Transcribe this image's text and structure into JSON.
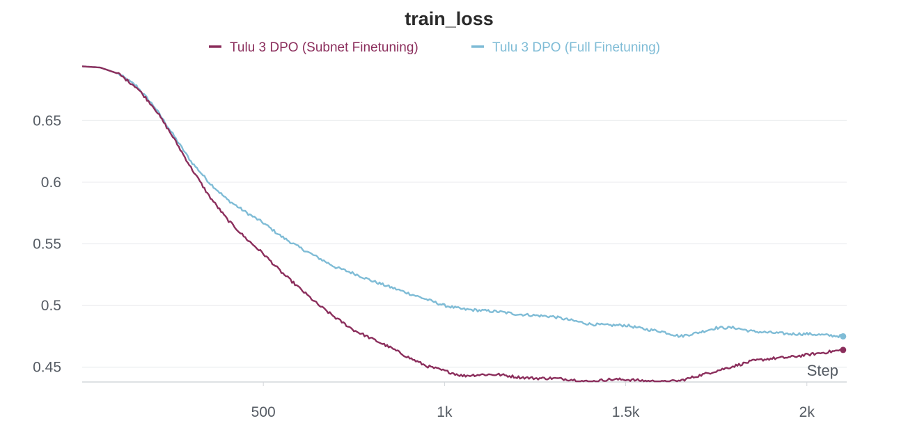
{
  "chart_data": {
    "type": "line",
    "title": "train_loss",
    "xlabel": "Step",
    "ylabel": "",
    "xlim": [
      0,
      2110
    ],
    "ylim": [
      0.438,
      0.697
    ],
    "xticks": [
      {
        "value": 500,
        "label": "500"
      },
      {
        "value": 1000,
        "label": "1k"
      },
      {
        "value": 1500,
        "label": "1.5k"
      },
      {
        "value": 2000,
        "label": "2k"
      }
    ],
    "yticks": [
      {
        "value": 0.45,
        "label": "0.45"
      },
      {
        "value": 0.5,
        "label": "0.5"
      },
      {
        "value": 0.55,
        "label": "0.55"
      },
      {
        "value": 0.6,
        "label": "0.6"
      },
      {
        "value": 0.65,
        "label": "0.65"
      }
    ],
    "grid": true,
    "legend_position": "top-center",
    "series": [
      {
        "name": "Tulu 3 DPO (Subnet Finetuning)",
        "color": "#8b2e5c",
        "x": [
          0,
          50,
          100,
          150,
          200,
          250,
          300,
          350,
          400,
          450,
          500,
          550,
          600,
          650,
          700,
          750,
          800,
          850,
          900,
          950,
          1000,
          1050,
          1100,
          1150,
          1200,
          1250,
          1300,
          1350,
          1400,
          1450,
          1500,
          1550,
          1600,
          1650,
          1700,
          1750,
          1800,
          1850,
          1900,
          1950,
          2000,
          2050,
          2100
        ],
        "y": [
          0.694,
          0.693,
          0.688,
          0.677,
          0.66,
          0.637,
          0.612,
          0.589,
          0.57,
          0.555,
          0.542,
          0.527,
          0.514,
          0.501,
          0.49,
          0.48,
          0.473,
          0.466,
          0.458,
          0.451,
          0.447,
          0.443,
          0.444,
          0.444,
          0.442,
          0.441,
          0.441,
          0.44,
          0.438,
          0.44,
          0.44,
          0.439,
          0.438,
          0.439,
          0.443,
          0.447,
          0.451,
          0.455,
          0.457,
          0.458,
          0.46,
          0.462,
          0.464
        ]
      },
      {
        "name": "Tulu 3 DPO (Full Finetuning)",
        "color": "#7fbcd6",
        "x": [
          0,
          50,
          100,
          150,
          200,
          250,
          300,
          350,
          400,
          450,
          500,
          550,
          600,
          650,
          700,
          750,
          800,
          850,
          900,
          950,
          1000,
          1050,
          1100,
          1150,
          1200,
          1250,
          1300,
          1350,
          1400,
          1450,
          1500,
          1550,
          1600,
          1650,
          1700,
          1750,
          1800,
          1850,
          1900,
          1950,
          2000,
          2050,
          2100
        ],
        "y": [
          0.694,
          0.693,
          0.688,
          0.678,
          0.661,
          0.639,
          0.617,
          0.6,
          0.586,
          0.576,
          0.567,
          0.556,
          0.547,
          0.539,
          0.531,
          0.526,
          0.52,
          0.515,
          0.51,
          0.505,
          0.5,
          0.497,
          0.496,
          0.495,
          0.493,
          0.492,
          0.491,
          0.488,
          0.485,
          0.484,
          0.484,
          0.481,
          0.479,
          0.475,
          0.478,
          0.482,
          0.482,
          0.479,
          0.478,
          0.477,
          0.477,
          0.476,
          0.475
        ]
      }
    ]
  }
}
